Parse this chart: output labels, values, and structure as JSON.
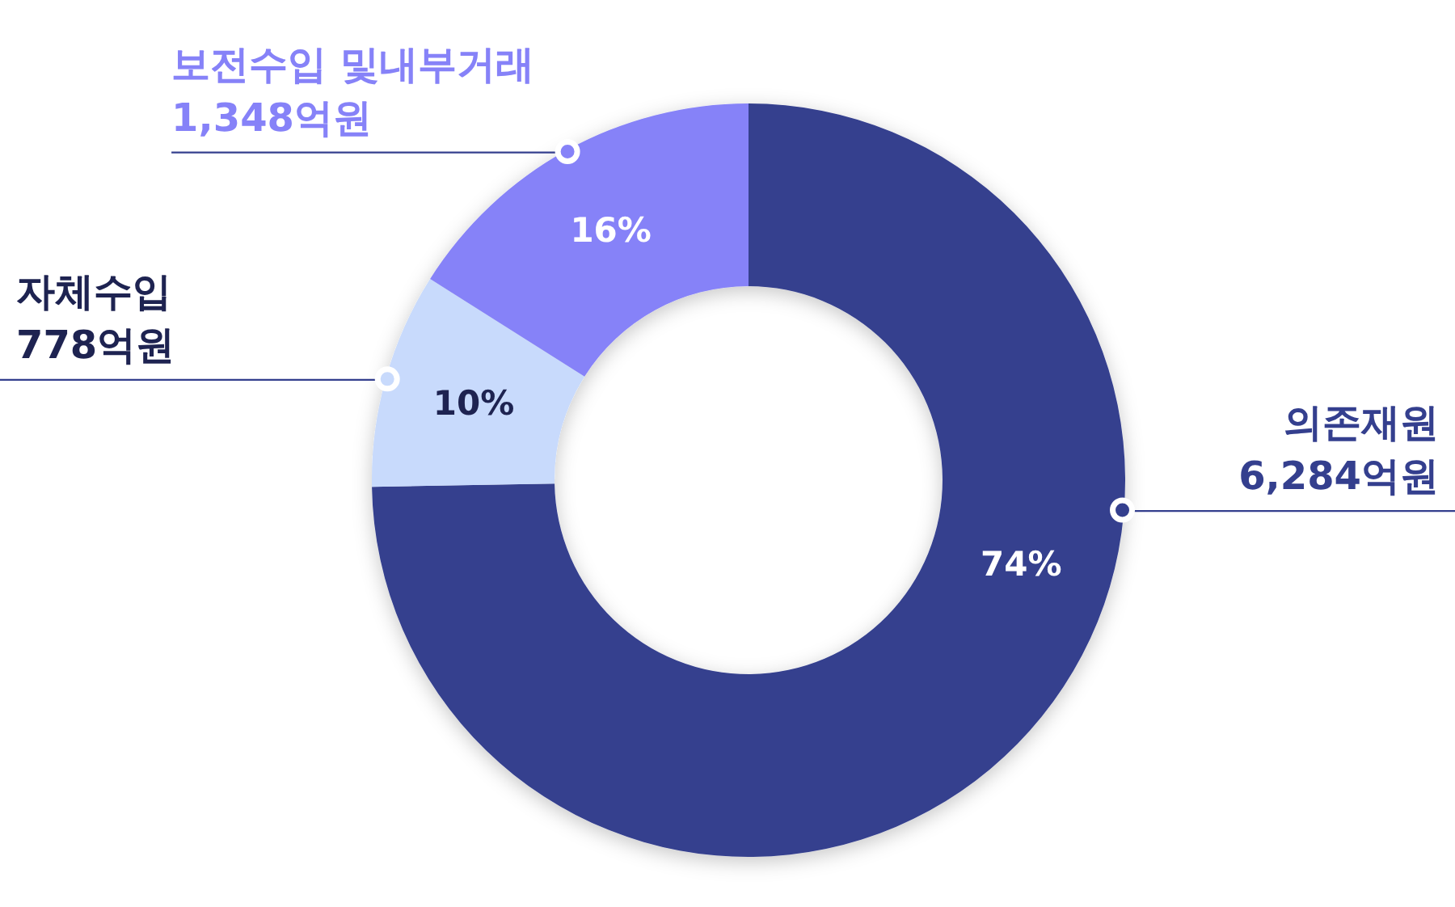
{
  "chart_data": {
    "type": "donut",
    "categories": [
      "의존재원",
      "자체수입",
      "보전수입 및내부거래"
    ],
    "values": [
      6284,
      778,
      1348
    ],
    "colors": [
      "#343f8e",
      "#c8dafc",
      "#8682f8"
    ],
    "value_labels": [
      "6,284억원",
      "778억원",
      "1,348억원"
    ],
    "annotations": [
      "74%",
      "10%",
      "16%"
    ]
  }
}
